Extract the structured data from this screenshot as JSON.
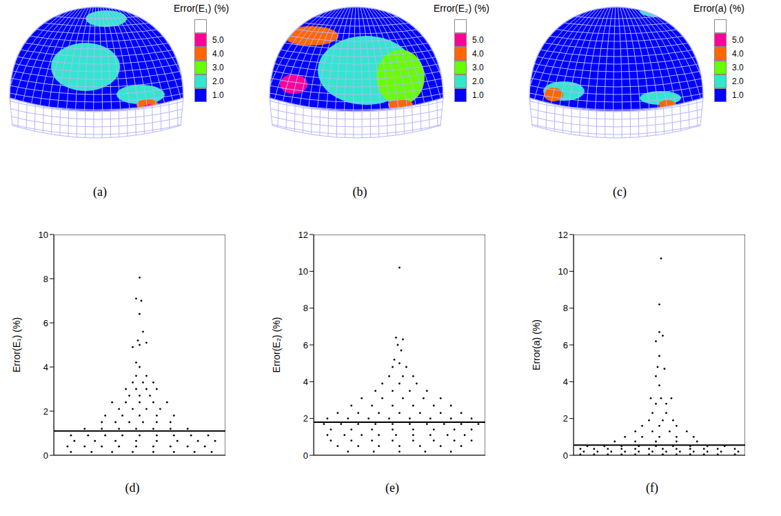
{
  "maps": [
    {
      "label": "(a)",
      "colorbar": {
        "title": "Error(E₁) (%)",
        "ticks": [
          {
            "value": 1,
            "label": "1.0"
          },
          {
            "value": 2,
            "label": "2.0"
          },
          {
            "value": 3,
            "label": "3.0"
          },
          {
            "value": 4,
            "label": "4.0"
          },
          {
            "value": 5,
            "label": "5.0"
          }
        ],
        "colors": [
          "#0000ff",
          "#33e6cc",
          "#66ff00",
          "#ff6600",
          "#ff0099",
          "#ffffff"
        ]
      }
    },
    {
      "label": "(b)",
      "colorbar": {
        "title": "Error(E₂) (%)",
        "ticks": [
          {
            "value": 1,
            "label": "1.0"
          },
          {
            "value": 2,
            "label": "2.0"
          },
          {
            "value": 3,
            "label": "3.0"
          },
          {
            "value": 4,
            "label": "4.0"
          },
          {
            "value": 5,
            "label": "5.0"
          }
        ],
        "colors": [
          "#0000ff",
          "#33e6cc",
          "#66ff00",
          "#ff6600",
          "#ff0099",
          "#ffffff"
        ]
      }
    },
    {
      "label": "(c)",
      "colorbar": {
        "title": "Error(a) (%)",
        "ticks": [
          {
            "value": 1,
            "label": "1.0"
          },
          {
            "value": 2,
            "label": "2.0"
          },
          {
            "value": 3,
            "label": "3.0"
          },
          {
            "value": 4,
            "label": "4.0"
          },
          {
            "value": 5,
            "label": "5.0"
          }
        ],
        "colors": [
          "#0000ff",
          "#33e6cc",
          "#66ff00",
          "#ff6600",
          "#ff0099",
          "#ffffff"
        ]
      }
    }
  ],
  "chart_data": [
    {
      "type": "scatter",
      "panel": "(d)",
      "y_label": "Error(E₁) (%)",
      "color": "#000000",
      "marker": "circle",
      "tick_labels": "y",
      "xlim": [
        0,
        100
      ],
      "ylim": [
        0,
        10
      ],
      "yticks": [
        0,
        2,
        4,
        6,
        8,
        10
      ],
      "mean": 1.1,
      "x": [
        10,
        22,
        34,
        46,
        58,
        70,
        82,
        92,
        8,
        18,
        28,
        38,
        48,
        58,
        68,
        78,
        88,
        12,
        24,
        36,
        48,
        60,
        72,
        84,
        94,
        10,
        20,
        30,
        40,
        50,
        60,
        70,
        80,
        90,
        18,
        28,
        38,
        48,
        58,
        68,
        78,
        28,
        36,
        44,
        52,
        60,
        68,
        30,
        40,
        50,
        60,
        70,
        38,
        46,
        54,
        62,
        34,
        42,
        50,
        58,
        66,
        44,
        50,
        56,
        42,
        48,
        54,
        60,
        46,
        52,
        58,
        48,
        54,
        50,
        48,
        46,
        50,
        54,
        49,
        52,
        50,
        51,
        48,
        50
      ],
      "values": [
        0.15,
        0.15,
        0.15,
        0.15,
        0.15,
        0.15,
        0.15,
        0.15,
        0.4,
        0.4,
        0.4,
        0.4,
        0.4,
        0.4,
        0.4,
        0.4,
        0.4,
        0.65,
        0.65,
        0.65,
        0.65,
        0.65,
        0.65,
        0.65,
        0.65,
        0.9,
        0.9,
        0.9,
        0.9,
        0.9,
        0.9,
        0.9,
        0.9,
        0.9,
        1.2,
        1.2,
        1.2,
        1.2,
        1.2,
        1.2,
        1.2,
        1.5,
        1.5,
        1.5,
        1.5,
        1.5,
        1.5,
        1.8,
        1.8,
        1.8,
        1.8,
        1.8,
        2.1,
        2.1,
        2.1,
        2.1,
        2.4,
        2.4,
        2.4,
        2.4,
        2.4,
        2.7,
        2.7,
        2.7,
        3.0,
        3.0,
        3.0,
        3.0,
        3.3,
        3.3,
        3.3,
        3.6,
        3.6,
        4.0,
        4.2,
        4.9,
        5.0,
        5.1,
        5.2,
        5.6,
        6.4,
        7.0,
        7.1,
        8.05
      ]
    },
    {
      "type": "scatter",
      "panel": "(e)",
      "y_label": "Error(E₂) (%)",
      "color": "#000000",
      "marker": "circle",
      "tick_labels": "y",
      "xlim": [
        0,
        100
      ],
      "ylim": [
        0,
        12
      ],
      "yticks": [
        0,
        2,
        4,
        6,
        8,
        10,
        12
      ],
      "mean": 1.8,
      "x": [
        20,
        35,
        50,
        65,
        80,
        14,
        26,
        38,
        50,
        62,
        74,
        86,
        10,
        22,
        34,
        46,
        58,
        70,
        82,
        92,
        8,
        18,
        28,
        38,
        48,
        58,
        68,
        78,
        88,
        10,
        22,
        34,
        46,
        58,
        70,
        82,
        92,
        6,
        16,
        26,
        36,
        46,
        56,
        66,
        76,
        86,
        96,
        8,
        20,
        32,
        44,
        56,
        68,
        80,
        92,
        14,
        26,
        38,
        50,
        62,
        74,
        86,
        22,
        34,
        46,
        58,
        70,
        80,
        28,
        40,
        52,
        64,
        74,
        36,
        46,
        56,
        66,
        40,
        50,
        60,
        44,
        52,
        58,
        46,
        54,
        50,
        47,
        51,
        49,
        52,
        48,
        50
      ],
      "values": [
        0.2,
        0.2,
        0.2,
        0.2,
        0.2,
        0.5,
        0.5,
        0.5,
        0.5,
        0.5,
        0.5,
        0.5,
        0.8,
        0.8,
        0.8,
        0.8,
        0.8,
        0.8,
        0.8,
        0.8,
        1.1,
        1.1,
        1.1,
        1.1,
        1.1,
        1.1,
        1.1,
        1.1,
        1.1,
        1.4,
        1.4,
        1.4,
        1.4,
        1.4,
        1.4,
        1.4,
        1.4,
        1.7,
        1.7,
        1.7,
        1.7,
        1.7,
        1.7,
        1.7,
        1.7,
        1.7,
        1.7,
        2.0,
        2.0,
        2.0,
        2.0,
        2.0,
        2.0,
        2.0,
        2.0,
        2.3,
        2.3,
        2.3,
        2.3,
        2.3,
        2.3,
        2.3,
        2.7,
        2.7,
        2.7,
        2.7,
        2.7,
        2.7,
        3.1,
        3.1,
        3.1,
        3.1,
        3.1,
        3.5,
        3.5,
        3.5,
        3.5,
        3.9,
        3.9,
        3.9,
        4.3,
        4.3,
        4.3,
        4.8,
        4.8,
        5.0,
        5.2,
        5.7,
        6.0,
        6.3,
        6.4,
        10.2
      ]
    },
    {
      "type": "scatter",
      "panel": "(f)",
      "y_label": "Error(a) (%)",
      "color": "#000000",
      "marker": "circle",
      "tick_labels": "y",
      "xlim": [
        0,
        100
      ],
      "ylim": [
        0,
        12
      ],
      "yticks": [
        0,
        2,
        4,
        6,
        8,
        10,
        12
      ],
      "mean": 0.55,
      "x": [
        4,
        12,
        20,
        28,
        36,
        44,
        52,
        60,
        68,
        76,
        84,
        94,
        6,
        14,
        22,
        30,
        38,
        46,
        54,
        62,
        70,
        78,
        86,
        96,
        4,
        12,
        20,
        28,
        36,
        44,
        52,
        60,
        68,
        76,
        84,
        94,
        8,
        18,
        28,
        38,
        48,
        58,
        68,
        78,
        88,
        24,
        36,
        48,
        60,
        72,
        30,
        40,
        50,
        60,
        70,
        36,
        46,
        56,
        66,
        40,
        50,
        60,
        44,
        52,
        58,
        46,
        54,
        48,
        54,
        45,
        51,
        57,
        50,
        48,
        53,
        49,
        50,
        48,
        52,
        50,
        50,
        51
      ],
      "values": [
        0.05,
        0.05,
        0.05,
        0.05,
        0.05,
        0.05,
        0.05,
        0.05,
        0.05,
        0.05,
        0.05,
        0.05,
        0.2,
        0.2,
        0.2,
        0.2,
        0.2,
        0.2,
        0.2,
        0.2,
        0.2,
        0.2,
        0.2,
        0.2,
        0.35,
        0.35,
        0.35,
        0.35,
        0.35,
        0.35,
        0.35,
        0.35,
        0.35,
        0.35,
        0.35,
        0.35,
        0.5,
        0.5,
        0.5,
        0.5,
        0.5,
        0.5,
        0.5,
        0.5,
        0.5,
        0.75,
        0.75,
        0.75,
        0.75,
        0.75,
        1.0,
        1.0,
        1.0,
        1.0,
        1.0,
        1.3,
        1.3,
        1.3,
        1.3,
        1.6,
        1.6,
        1.6,
        1.9,
        1.9,
        1.9,
        2.3,
        2.3,
        2.8,
        2.8,
        3.1,
        3.1,
        3.1,
        3.8,
        4.3,
        4.7,
        4.8,
        5.4,
        6.2,
        6.5,
        6.7,
        8.2,
        10.7
      ]
    }
  ]
}
